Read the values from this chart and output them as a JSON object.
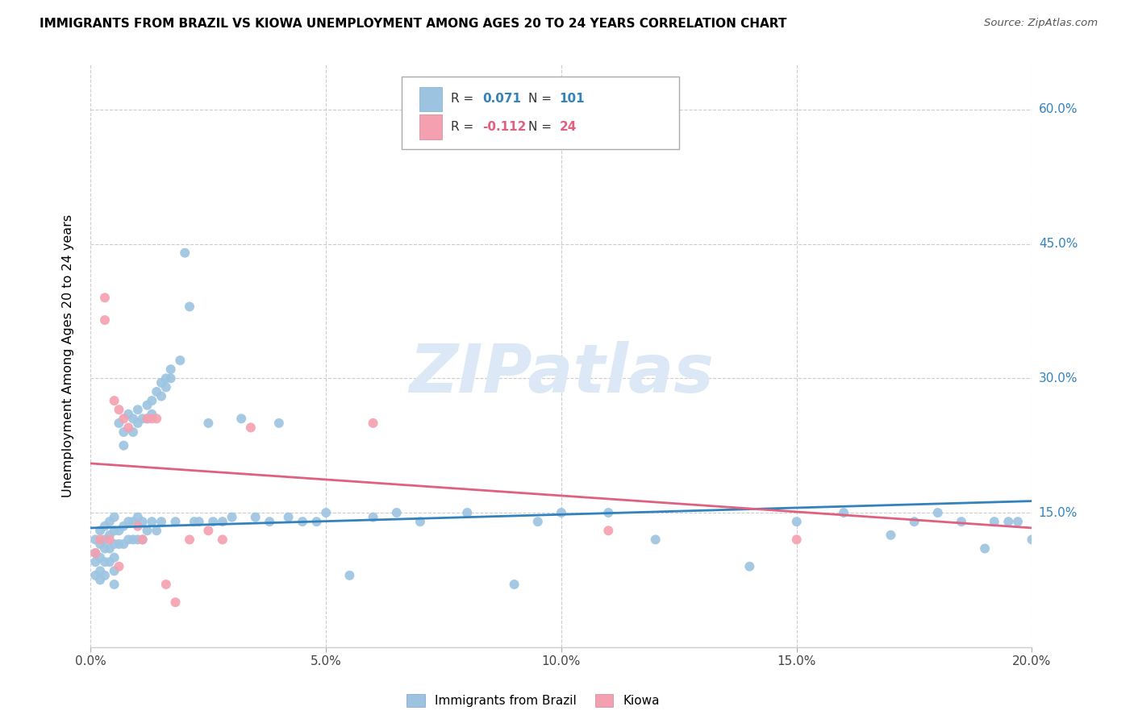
{
  "title": "IMMIGRANTS FROM BRAZIL VS KIOWA UNEMPLOYMENT AMONG AGES 20 TO 24 YEARS CORRELATION CHART",
  "source_text": "Source: ZipAtlas.com",
  "ylabel": "Unemployment Among Ages 20 to 24 years",
  "watermark": "ZIPatlas",
  "xlim": [
    0.0,
    0.2
  ],
  "ylim": [
    0.0,
    0.65
  ],
  "xtick_vals": [
    0.0,
    0.05,
    0.1,
    0.15,
    0.2
  ],
  "xtick_labels": [
    "0.0%",
    "5.0%",
    "10.0%",
    "15.0%",
    "20.0%"
  ],
  "ytick_right_labels": [
    "15.0%",
    "30.0%",
    "45.0%",
    "60.0%"
  ],
  "ytick_right_vals": [
    0.15,
    0.3,
    0.45,
    0.6
  ],
  "legend1_r": "0.071",
  "legend1_n": "101",
  "legend2_r": "-0.112",
  "legend2_n": "24",
  "legend1_label": "Immigrants from Brazil",
  "legend2_label": "Kiowa",
  "color_blue": "#9cc4e0",
  "color_pink": "#f4a0b0",
  "color_blue_line": "#3182bd",
  "color_pink_line": "#e06080",
  "color_watermark": "#dce8f5",
  "brazil_x": [
    0.001,
    0.001,
    0.001,
    0.001,
    0.002,
    0.002,
    0.002,
    0.002,
    0.002,
    0.003,
    0.003,
    0.003,
    0.003,
    0.003,
    0.004,
    0.004,
    0.004,
    0.004,
    0.005,
    0.005,
    0.005,
    0.005,
    0.005,
    0.005,
    0.006,
    0.006,
    0.006,
    0.007,
    0.007,
    0.007,
    0.007,
    0.008,
    0.008,
    0.008,
    0.009,
    0.009,
    0.009,
    0.009,
    0.01,
    0.01,
    0.01,
    0.01,
    0.011,
    0.011,
    0.011,
    0.012,
    0.012,
    0.012,
    0.013,
    0.013,
    0.013,
    0.014,
    0.014,
    0.015,
    0.015,
    0.015,
    0.016,
    0.016,
    0.017,
    0.017,
    0.018,
    0.019,
    0.02,
    0.021,
    0.022,
    0.023,
    0.025,
    0.026,
    0.028,
    0.03,
    0.032,
    0.035,
    0.038,
    0.04,
    0.042,
    0.045,
    0.048,
    0.05,
    0.055,
    0.06,
    0.065,
    0.07,
    0.08,
    0.09,
    0.095,
    0.1,
    0.11,
    0.12,
    0.14,
    0.15,
    0.16,
    0.17,
    0.175,
    0.18,
    0.185,
    0.19,
    0.192,
    0.195,
    0.197,
    0.2
  ],
  "brazil_y": [
    0.12,
    0.105,
    0.095,
    0.08,
    0.13,
    0.115,
    0.1,
    0.085,
    0.075,
    0.135,
    0.12,
    0.11,
    0.095,
    0.08,
    0.14,
    0.125,
    0.11,
    0.095,
    0.145,
    0.13,
    0.115,
    0.1,
    0.085,
    0.07,
    0.25,
    0.13,
    0.115,
    0.24,
    0.225,
    0.135,
    0.115,
    0.26,
    0.14,
    0.12,
    0.255,
    0.24,
    0.14,
    0.12,
    0.265,
    0.25,
    0.145,
    0.12,
    0.255,
    0.14,
    0.12,
    0.27,
    0.255,
    0.13,
    0.275,
    0.26,
    0.14,
    0.285,
    0.13,
    0.295,
    0.28,
    0.14,
    0.3,
    0.29,
    0.31,
    0.3,
    0.14,
    0.32,
    0.44,
    0.38,
    0.14,
    0.14,
    0.25,
    0.14,
    0.14,
    0.145,
    0.255,
    0.145,
    0.14,
    0.25,
    0.145,
    0.14,
    0.14,
    0.15,
    0.08,
    0.145,
    0.15,
    0.14,
    0.15,
    0.07,
    0.14,
    0.15,
    0.15,
    0.12,
    0.09,
    0.14,
    0.15,
    0.125,
    0.14,
    0.15,
    0.14,
    0.11,
    0.14,
    0.14,
    0.14,
    0.12
  ],
  "kiowa_x": [
    0.001,
    0.002,
    0.003,
    0.003,
    0.004,
    0.005,
    0.006,
    0.006,
    0.007,
    0.008,
    0.01,
    0.011,
    0.012,
    0.013,
    0.014,
    0.016,
    0.018,
    0.021,
    0.025,
    0.028,
    0.034,
    0.06,
    0.11,
    0.15
  ],
  "kiowa_y": [
    0.105,
    0.12,
    0.365,
    0.39,
    0.12,
    0.275,
    0.265,
    0.09,
    0.255,
    0.245,
    0.135,
    0.12,
    0.255,
    0.255,
    0.255,
    0.07,
    0.05,
    0.12,
    0.13,
    0.12,
    0.245,
    0.25,
    0.13,
    0.12
  ],
  "brazil_trend_x": [
    0.0,
    0.2
  ],
  "brazil_trend_y": [
    0.133,
    0.163
  ],
  "kiowa_trend_x": [
    0.0,
    0.2
  ],
  "kiowa_trend_y": [
    0.205,
    0.133
  ]
}
